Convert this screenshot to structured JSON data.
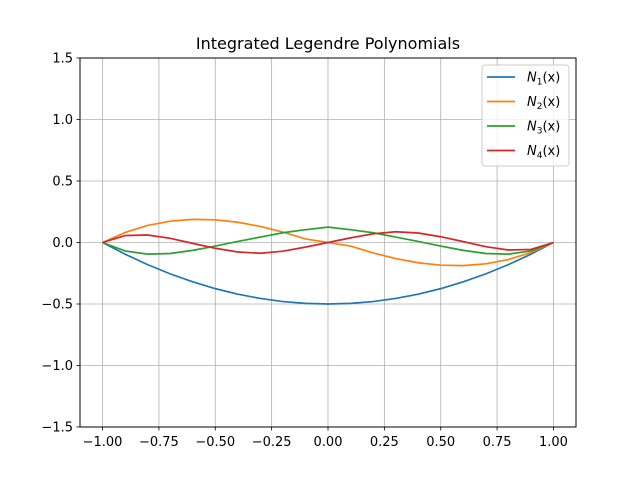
{
  "chart_data": {
    "type": "line",
    "title": "Integrated Legendre Polynomials",
    "xlabel": "",
    "ylabel": "",
    "xlim": [
      -1.1,
      1.1
    ],
    "ylim": [
      -1.5,
      1.5
    ],
    "xticks": [
      -1.0,
      -0.75,
      -0.5,
      -0.25,
      0.0,
      0.25,
      0.5,
      0.75,
      1.0
    ],
    "xtick_labels": [
      "−1.00",
      "−0.75",
      "−0.50",
      "−0.25",
      "0.00",
      "0.25",
      "0.50",
      "0.75",
      "1.00"
    ],
    "yticks": [
      -1.5,
      -1.0,
      -0.5,
      0.0,
      0.5,
      1.0,
      1.5
    ],
    "ytick_labels": [
      "−1.5",
      "−1.0",
      "−0.5",
      "0.0",
      "0.5",
      "1.0",
      "1.5"
    ],
    "grid": true,
    "legend_position": "top-right",
    "series": [
      {
        "name": "N1(x)",
        "legend": {
          "base": "N",
          "sub": "1",
          "arg": "(x)"
        },
        "color": "#1f77b4",
        "x": [
          -1.0,
          -0.9,
          -0.8,
          -0.7,
          -0.6,
          -0.5,
          -0.4,
          -0.3,
          -0.2,
          -0.1,
          0.0,
          0.1,
          0.2,
          0.3,
          0.4,
          0.5,
          0.6,
          0.7,
          0.8,
          0.9,
          1.0
        ],
        "y": [
          0.0,
          -0.095,
          -0.18,
          -0.255,
          -0.32,
          -0.375,
          -0.42,
          -0.455,
          -0.48,
          -0.495,
          -0.5,
          -0.495,
          -0.48,
          -0.455,
          -0.42,
          -0.375,
          -0.32,
          -0.255,
          -0.18,
          -0.095,
          0.0
        ]
      },
      {
        "name": "N2(x)",
        "legend": {
          "base": "N",
          "sub": "2",
          "arg": "(x)"
        },
        "color": "#ff7f0e",
        "x": [
          -1.0,
          -0.9,
          -0.8,
          -0.7,
          -0.6,
          -0.5,
          -0.4,
          -0.3,
          -0.2,
          -0.1,
          0.0,
          0.1,
          0.2,
          0.3,
          0.4,
          0.5,
          0.6,
          0.7,
          0.8,
          0.9,
          1.0
        ],
        "y": [
          0.0,
          0.0815,
          0.1386,
          0.1734,
          0.188,
          0.1844,
          0.1646,
          0.1307,
          0.0848,
          0.0289,
          -0.0,
          -0.0289,
          -0.0848,
          -0.1307,
          -0.1646,
          -0.1844,
          -0.188,
          -0.1734,
          -0.1386,
          -0.0815,
          0.0
        ]
      },
      {
        "name": "N3(x)",
        "legend": {
          "base": "N",
          "sub": "3",
          "arg": "(x)"
        },
        "color": "#2ca02c",
        "x": [
          -1.0,
          -0.9,
          -0.8,
          -0.7,
          -0.6,
          -0.5,
          -0.4,
          -0.3,
          -0.2,
          -0.1,
          0.0,
          0.1,
          0.2,
          0.3,
          0.4,
          0.5,
          0.6,
          0.7,
          0.8,
          0.9,
          1.0
        ],
        "y": [
          0.0,
          -0.0686,
          -0.0945,
          -0.0893,
          -0.064,
          -0.0293,
          0.0084,
          0.0445,
          0.0792,
          0.1042,
          0.125,
          0.1042,
          0.0792,
          0.0445,
          0.0084,
          -0.0293,
          -0.064,
          -0.0893,
          -0.0945,
          -0.0686,
          0.0
        ]
      },
      {
        "name": "N4(x)",
        "legend": {
          "base": "N",
          "sub": "4",
          "arg": "(x)"
        },
        "color": "#d62728",
        "x": [
          -1.0,
          -0.9,
          -0.8,
          -0.7,
          -0.6,
          -0.5,
          -0.4,
          -0.3,
          -0.2,
          -0.1,
          0.0,
          0.1,
          0.2,
          0.3,
          0.4,
          0.5,
          0.6,
          0.7,
          0.8,
          0.9,
          1.0
        ],
        "y": [
          0.0,
          0.0566,
          0.0608,
          0.0338,
          -0.0072,
          -0.0469,
          -0.0771,
          -0.0872,
          -0.0706,
          -0.0375,
          0.0,
          0.0375,
          0.0706,
          0.0872,
          0.0771,
          0.0469,
          0.0072,
          -0.0338,
          -0.0608,
          -0.0566,
          0.0
        ]
      }
    ]
  }
}
